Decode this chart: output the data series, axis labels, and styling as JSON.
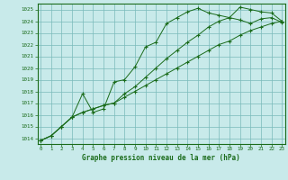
{
  "title": "Graphe pression niveau de la mer (hPa)",
  "background_color": "#c8eaea",
  "line_color": "#1a6b1a",
  "grid_color": "#7ababa",
  "ylim": [
    1013.5,
    1025.5
  ],
  "xlim": [
    -0.3,
    23.3
  ],
  "yticks": [
    1014,
    1015,
    1016,
    1017,
    1018,
    1019,
    1020,
    1021,
    1022,
    1023,
    1024,
    1025
  ],
  "xticks": [
    0,
    1,
    2,
    3,
    4,
    5,
    6,
    7,
    8,
    9,
    10,
    11,
    12,
    13,
    14,
    15,
    16,
    17,
    18,
    19,
    20,
    21,
    22,
    23
  ],
  "series": [
    [
      1013.8,
      1014.2,
      1015.0,
      1015.8,
      1017.8,
      1016.2,
      1016.5,
      1018.8,
      1019.0,
      1020.1,
      1021.8,
      1022.2,
      1023.8,
      1024.3,
      1024.8,
      1025.1,
      1024.7,
      1024.5,
      1024.3,
      1024.1,
      1023.8,
      1024.2,
      1024.3,
      1023.9
    ],
    [
      1013.8,
      1014.2,
      1015.0,
      1015.8,
      1016.2,
      1016.5,
      1016.8,
      1017.0,
      1017.8,
      1018.4,
      1019.2,
      1020.0,
      1020.8,
      1021.5,
      1022.2,
      1022.8,
      1023.5,
      1024.0,
      1024.3,
      1025.2,
      1025.0,
      1024.8,
      1024.7,
      1024.0
    ],
    [
      1013.8,
      1014.2,
      1015.0,
      1015.8,
      1016.2,
      1016.5,
      1016.8,
      1017.0,
      1017.5,
      1018.0,
      1018.5,
      1019.0,
      1019.5,
      1020.0,
      1020.5,
      1021.0,
      1021.5,
      1022.0,
      1022.3,
      1022.8,
      1023.2,
      1023.5,
      1023.8,
      1024.0
    ]
  ]
}
